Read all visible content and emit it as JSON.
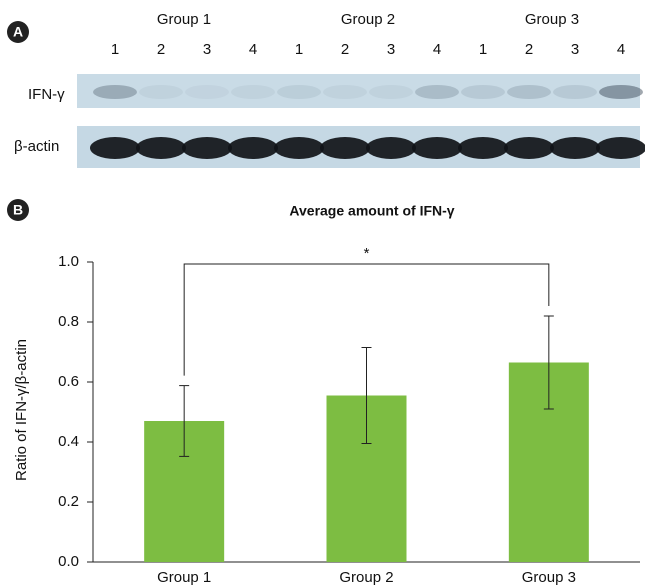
{
  "blot": {
    "panel_label": "A",
    "groups": [
      {
        "name": "Group 1",
        "lanes": [
          "1",
          "2",
          "3",
          "4"
        ]
      },
      {
        "name": "Group 2",
        "lanes": [
          "1",
          "2",
          "3",
          "4"
        ]
      },
      {
        "name": "Group 3",
        "lanes": [
          "1",
          "2",
          "3",
          "4"
        ]
      }
    ],
    "rows": [
      "IFN-γ",
      "β-actin"
    ]
  },
  "chart_data": {
    "type": "bar",
    "panel_label": "B",
    "title": "Average amount of IFN-γ",
    "y_label": "Ratio of IFN-γ/β-actin",
    "categories": [
      "Group 1",
      "Group 2",
      "Group 3"
    ],
    "values": [
      0.47,
      0.555,
      0.665
    ],
    "errors": [
      0.118,
      0.16,
      0.155
    ],
    "color": "#7dbd42",
    "ylim": [
      0,
      1
    ],
    "yticks": [
      {
        "value": 0,
        "label": "0.0"
      },
      0.2,
      0.4,
      0.6,
      0.8,
      {
        "value": 1,
        "label": "1.0"
      }
    ],
    "annotation": "*"
  }
}
